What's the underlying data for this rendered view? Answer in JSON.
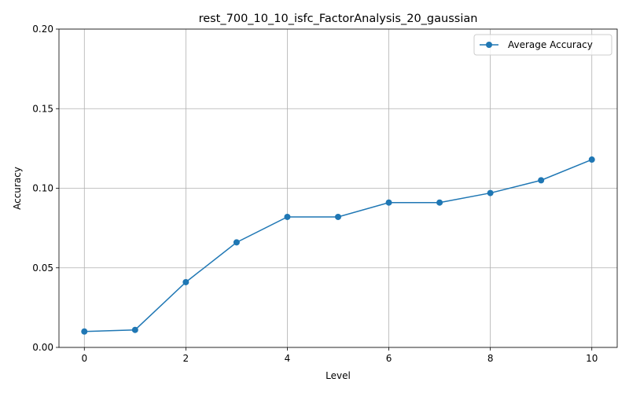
{
  "chart_data": {
    "type": "line",
    "title": "rest_700_10_10_isfc_FactorAnalysis_20_gaussian",
    "xlabel": "Level",
    "ylabel": "Accuracy",
    "xlim": [
      -0.5,
      10.5
    ],
    "ylim": [
      0,
      0.2
    ],
    "xticks": [
      0,
      2,
      4,
      6,
      8,
      10
    ],
    "xtick_labels": [
      "0",
      "2",
      "4",
      "6",
      "8",
      "10"
    ],
    "yticks": [
      0,
      0.05,
      0.1,
      0.15,
      0.2
    ],
    "ytick_labels": [
      "0.00",
      "0.05",
      "0.10",
      "0.15",
      "0.20"
    ],
    "grid": true,
    "legend_position": "top-right",
    "series": [
      {
        "name": "Average Accuracy",
        "color": "#1f77b4",
        "marker": "circle",
        "x": [
          0,
          1,
          2,
          3,
          4,
          5,
          6,
          7,
          8,
          9,
          10
        ],
        "y": [
          0.01,
          0.011,
          0.041,
          0.066,
          0.082,
          0.082,
          0.091,
          0.091,
          0.097,
          0.105,
          0.118
        ]
      }
    ]
  }
}
